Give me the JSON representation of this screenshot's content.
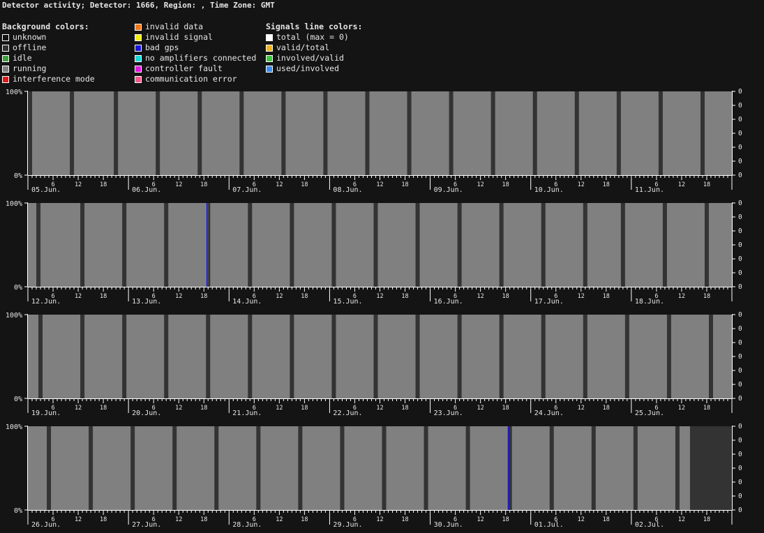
{
  "header": {
    "title": "Detector activity; Detector: 1666, Region: , Time Zone: GMT"
  },
  "legend": {
    "background": {
      "title": "Background colors:",
      "items": [
        {
          "label": "unknown",
          "color": "#141414"
        },
        {
          "label": "offline",
          "color": "#333333"
        },
        {
          "label": "idle",
          "color": "#3ca03c"
        },
        {
          "label": "running",
          "color": "#808080"
        },
        {
          "label": "interference mode",
          "color": "#e01818"
        }
      ]
    },
    "faults": {
      "items": [
        {
          "label": "invalid data",
          "color": "#f07818"
        },
        {
          "label": "invalid signal",
          "color": "#f0f018"
        },
        {
          "label": "bad gps",
          "color": "#1818d8"
        },
        {
          "label": "no amplifiers connected",
          "color": "#18d8d8"
        },
        {
          "label": "controller fault",
          "color": "#e018e0"
        },
        {
          "label": "communication error",
          "color": "#f05a90"
        }
      ]
    },
    "signals": {
      "title": "Signals line colors:",
      "items": [
        {
          "label": "total (max = 0)",
          "color": "#ffffff"
        },
        {
          "label": "valid/total",
          "color": "#f0b418"
        },
        {
          "label": "involved/valid",
          "color": "#3cc83c"
        },
        {
          "label": "used/involved",
          "color": "#3c8cf0"
        }
      ]
    }
  },
  "chart_data": {
    "type": "area",
    "hours_per_panel": 168,
    "y_left_ticks": [
      "100%",
      "0%"
    ],
    "y_right_ticks": [
      "0",
      "0",
      "0",
      "0",
      "0",
      "0"
    ],
    "hour_ticks": [
      "6",
      "12",
      "18"
    ],
    "colors": {
      "running": "#808080",
      "offline": "#333333",
      "bad_gps": "#1818d8",
      "axis": "#ffffff"
    },
    "panels": [
      {
        "days": [
          "05.Jun.",
          "06.Jun.",
          "07.Jun.",
          "08.Jun.",
          "09.Jun.",
          "10.Jun.",
          "11.Jun."
        ],
        "running": [
          [
            1,
            10
          ],
          [
            11,
            20.5
          ],
          [
            21.5,
            30.5
          ],
          [
            31.5,
            40.5
          ],
          [
            41.5,
            50.5
          ],
          [
            51.5,
            60.5
          ],
          [
            61.5,
            70.5
          ],
          [
            71.5,
            80.5
          ],
          [
            81.5,
            90.5
          ],
          [
            91.5,
            100.5
          ],
          [
            101.5,
            110.5
          ],
          [
            111.5,
            120.5
          ],
          [
            121.5,
            130.5
          ],
          [
            131.5,
            140.5
          ],
          [
            141.5,
            150.5
          ],
          [
            151.5,
            160.5
          ],
          [
            161.5,
            168
          ]
        ],
        "bad_gps": []
      },
      {
        "days": [
          "12.Jun.",
          "13.Jun.",
          "14.Jun.",
          "15.Jun.",
          "16.Jun.",
          "17.Jun.",
          "18.Jun."
        ],
        "running": [
          [
            0,
            2
          ],
          [
            3,
            12.5
          ],
          [
            13.5,
            22.5
          ],
          [
            23.5,
            32.5
          ],
          [
            33.5,
            43
          ],
          [
            43.5,
            52.5
          ],
          [
            53.5,
            62.5
          ],
          [
            63.5,
            72.5
          ],
          [
            73.5,
            82.5
          ],
          [
            83.5,
            92.5
          ],
          [
            93.5,
            102.5
          ],
          [
            103.5,
            112.5
          ],
          [
            113.5,
            122.5
          ],
          [
            123.5,
            132.5
          ],
          [
            133.5,
            141.5
          ],
          [
            142.5,
            151.5
          ],
          [
            152.5,
            161.5
          ],
          [
            162.5,
            168
          ]
        ],
        "bad_gps": [
          [
            42.6,
            42.9
          ]
        ]
      },
      {
        "days": [
          "19.Jun.",
          "20.Jun.",
          "21.Jun.",
          "22.Jun.",
          "23.Jun.",
          "24.Jun.",
          "25.Jun."
        ],
        "running": [
          [
            0,
            2.5
          ],
          [
            3.5,
            12.5
          ],
          [
            13.5,
            22.5
          ],
          [
            23.5,
            32.5
          ],
          [
            33.5,
            42.5
          ],
          [
            43.5,
            52.5
          ],
          [
            53.5,
            62.5
          ],
          [
            63.5,
            72.5
          ],
          [
            73.5,
            82.5
          ],
          [
            83.5,
            92.5
          ],
          [
            93.5,
            102.5
          ],
          [
            103.5,
            112.5
          ],
          [
            113.5,
            122.5
          ],
          [
            123.5,
            132.5
          ],
          [
            133.5,
            142.5
          ],
          [
            143.5,
            152.5
          ],
          [
            153.5,
            162.5
          ],
          [
            163.5,
            168
          ]
        ],
        "bad_gps": []
      },
      {
        "days": [
          "26.Jun.",
          "27.Jun.",
          "28.Jun.",
          "29.Jun.",
          "30.Jun.",
          "01.Jul.",
          "02.Jul."
        ],
        "running": [
          [
            0,
            4.5
          ],
          [
            5.5,
            14.5
          ],
          [
            15.5,
            24.5
          ],
          [
            25.5,
            34.5
          ],
          [
            35.5,
            44.5
          ],
          [
            45.5,
            54.5
          ],
          [
            55.5,
            64.5
          ],
          [
            65.5,
            74.5
          ],
          [
            75.5,
            84.5
          ],
          [
            85.5,
            94.5
          ],
          [
            95.5,
            104.5
          ],
          [
            105.5,
            114.5
          ],
          [
            115.5,
            124.5
          ],
          [
            125.5,
            134.5
          ],
          [
            135.5,
            144.5
          ],
          [
            145.5,
            154.5
          ],
          [
            155.5,
            158
          ]
        ],
        "bad_gps": [
          [
            114.6,
            114.9
          ]
        ]
      }
    ]
  }
}
